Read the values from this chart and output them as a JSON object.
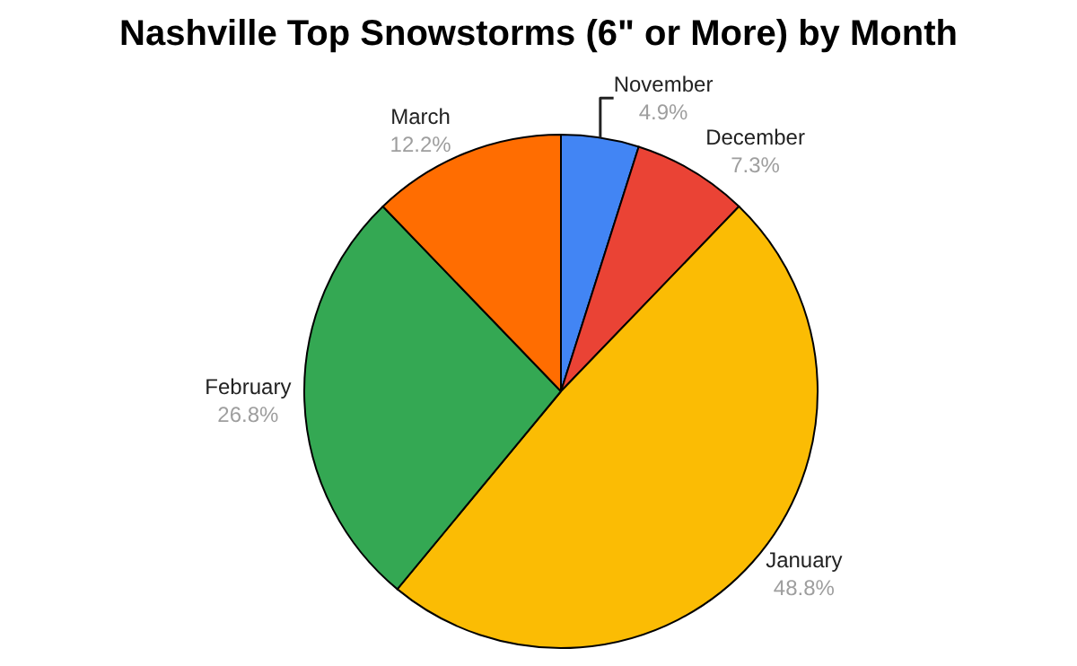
{
  "chart_data": {
    "type": "pie",
    "title": "Nashville Top Snowstorms (6\" or More) by Month",
    "categories": [
      "November",
      "December",
      "January",
      "February",
      "March"
    ],
    "values": [
      4.9,
      7.3,
      48.8,
      26.8,
      12.2
    ],
    "value_labels": [
      "4.9%",
      "7.3%",
      "48.8%",
      "26.8%",
      "12.2%"
    ],
    "colors": [
      "#4285f4",
      "#ea4335",
      "#fbbc04",
      "#34a853",
      "#ff6d01"
    ],
    "legend": false
  }
}
